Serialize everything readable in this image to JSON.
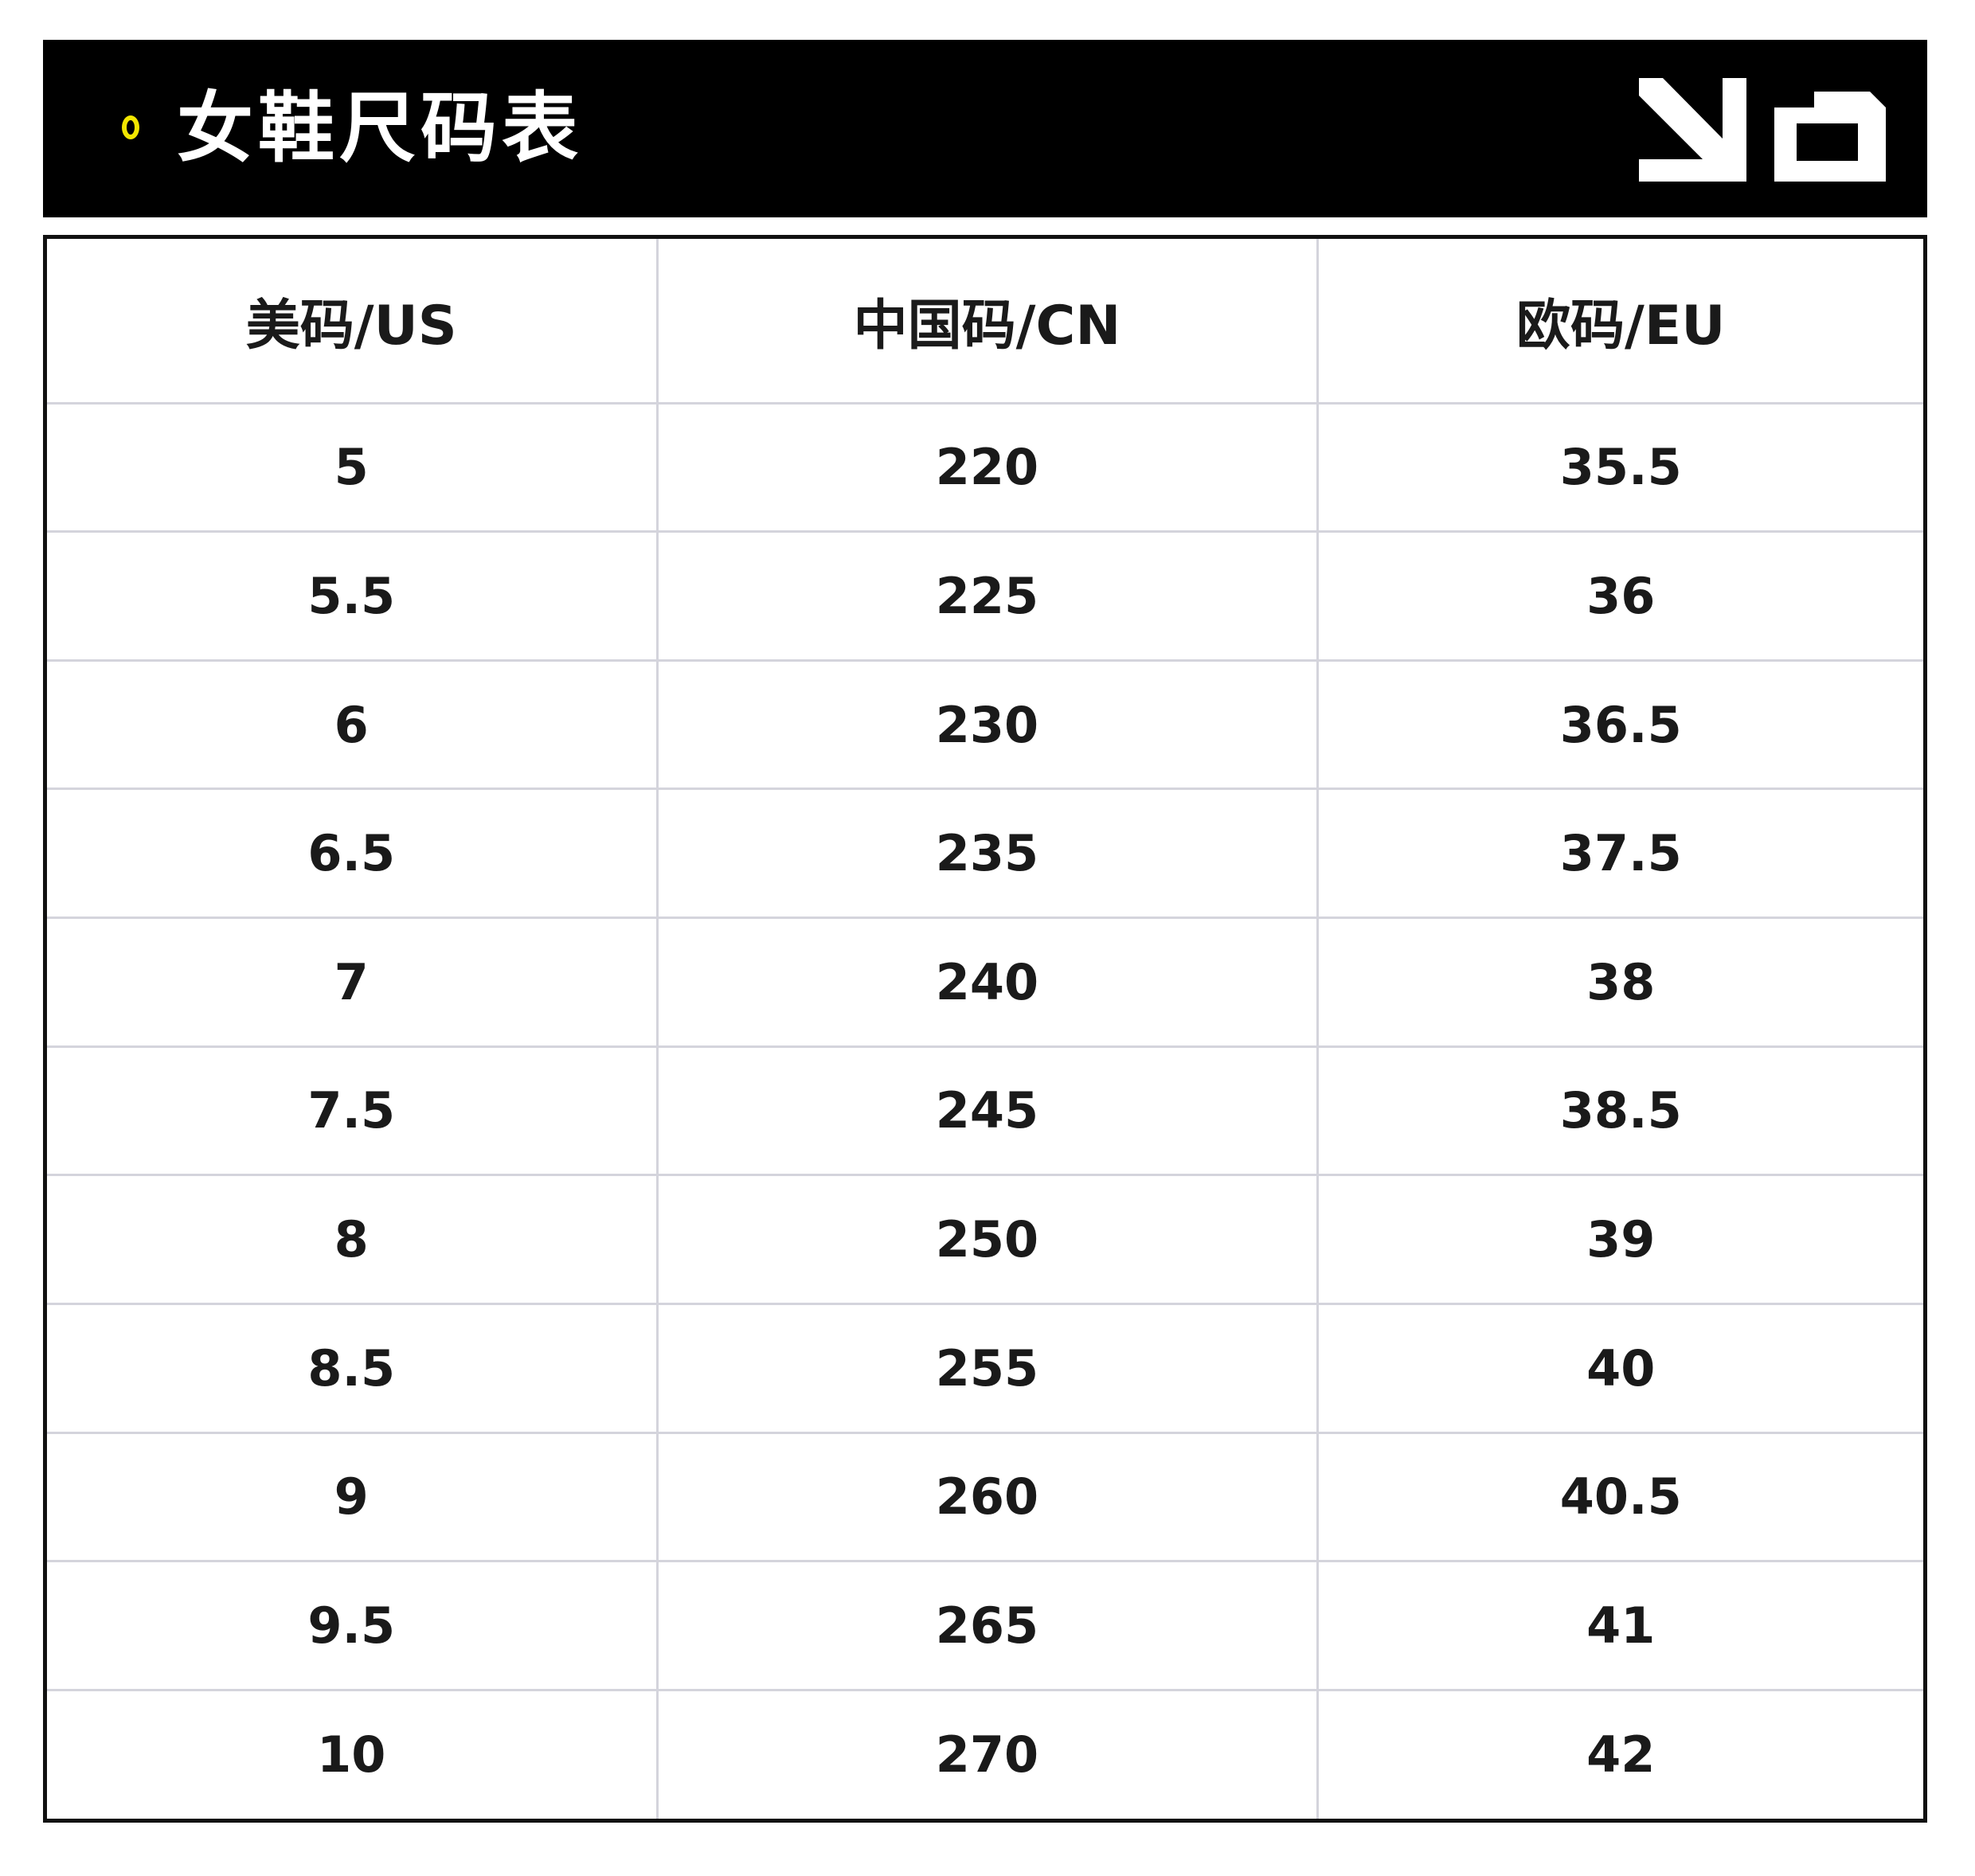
{
  "header": {
    "title": "女鞋尺码表",
    "bullet_color": "#f2e600",
    "background": "#000000",
    "logo_icon": "brand-logo-icon"
  },
  "table": {
    "columns": [
      "美码/US",
      "中国码/CN",
      "欧码/EU"
    ],
    "rows": [
      [
        "5",
        "220",
        "35.5"
      ],
      [
        "5.5",
        "225",
        "36"
      ],
      [
        "6",
        "230",
        "36.5"
      ],
      [
        "6.5",
        "235",
        "37.5"
      ],
      [
        "7",
        "240",
        "38"
      ],
      [
        "7.5",
        "245",
        "38.5"
      ],
      [
        "8",
        "250",
        "39"
      ],
      [
        "8.5",
        "255",
        "40"
      ],
      [
        "9",
        "260",
        "40.5"
      ],
      [
        "9.5",
        "265",
        "41"
      ],
      [
        "10",
        "270",
        "42"
      ]
    ]
  }
}
